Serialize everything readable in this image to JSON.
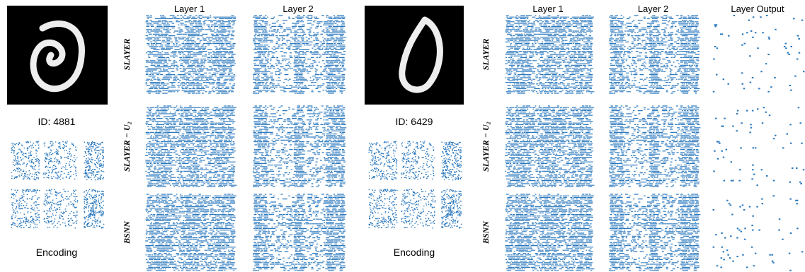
{
  "panels": [
    {
      "column_headers": [
        "Layer 1",
        "Layer 2"
      ],
      "row_labels": [
        "SLAYER",
        "SLAYER − U₂",
        "BSNN"
      ],
      "id_label": "ID:  4881",
      "encoding_label": "Encoding"
    },
    {
      "column_headers": [
        "Layer 1",
        "Layer 2",
        "Layer Output"
      ],
      "row_labels": [
        "SLAYER",
        "SLAYER − U₂",
        "BSNN"
      ],
      "id_label": "ID:  6429",
      "encoding_label": "Encoding"
    }
  ]
}
